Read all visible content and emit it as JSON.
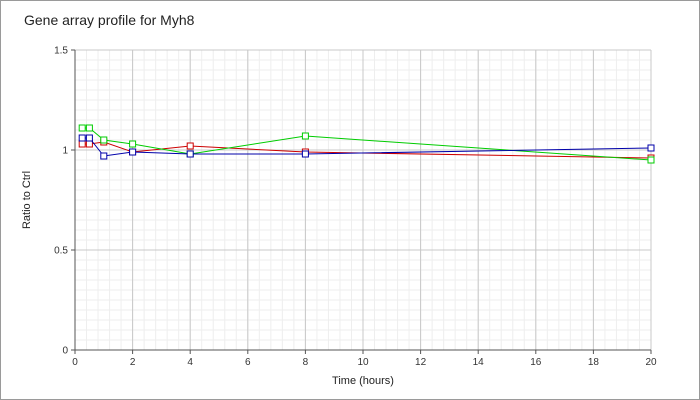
{
  "chart_data": {
    "type": "line",
    "title": "Gene array profile for Myh8",
    "xlabel": "Time (hours)",
    "ylabel": "Ratio to Ctrl",
    "xlim": [
      0,
      20
    ],
    "ylim": [
      0,
      1.5
    ],
    "x_ticks": [
      0,
      2,
      4,
      6,
      8,
      10,
      12,
      14,
      16,
      18,
      20
    ],
    "y_ticks": [
      0,
      0.5,
      1,
      1.5
    ],
    "y_tick_labels": [
      "0",
      "0.5",
      "1",
      "1.5"
    ],
    "grid": true,
    "marker": "square",
    "series": [
      {
        "color": "#cc0000",
        "x": [
          0.25,
          0.5,
          1,
          2,
          4,
          8,
          20
        ],
        "y": [
          1.03,
          1.03,
          1.04,
          0.99,
          1.02,
          0.99,
          0.96
        ]
      },
      {
        "color": "#00cc00",
        "x": [
          0.25,
          0.5,
          1,
          2,
          4,
          8,
          20
        ],
        "y": [
          1.11,
          1.11,
          1.05,
          1.03,
          0.98,
          1.07,
          0.95
        ]
      },
      {
        "color": "#0000aa",
        "x": [
          0.25,
          0.5,
          1,
          2,
          4,
          8,
          20
        ],
        "y": [
          1.06,
          1.06,
          0.97,
          0.99,
          0.98,
          0.98,
          1.01
        ]
      }
    ]
  }
}
